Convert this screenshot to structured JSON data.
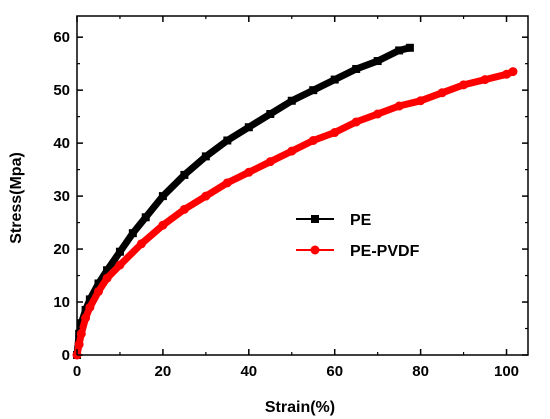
{
  "chart_data": {
    "type": "line",
    "xlabel": "Strain(%)",
    "ylabel": "Stress(Mpa)",
    "xlim": [
      0,
      105
    ],
    "ylim": [
      0,
      64
    ],
    "x_ticks": [
      "0",
      "20",
      "40",
      "60",
      "80",
      "100"
    ],
    "y_ticks": [
      "0",
      "10",
      "20",
      "30",
      "40",
      "50",
      "60"
    ],
    "legend_position": "center-right",
    "grid": false,
    "series": [
      {
        "name": "PE",
        "color": "#000000",
        "marker": "square",
        "x": [
          0,
          0.5,
          1,
          2,
          3,
          5,
          7,
          10,
          13,
          16,
          20,
          25,
          30,
          35,
          40,
          45,
          50,
          55,
          60,
          65,
          70,
          75,
          77.5
        ],
        "y": [
          0,
          4,
          6,
          8.5,
          10.5,
          13.5,
          16,
          19.5,
          23,
          26,
          30,
          34,
          37.5,
          40.5,
          43,
          45.5,
          48,
          50,
          52,
          54,
          55.5,
          57.5,
          58
        ]
      },
      {
        "name": "PE-PVDF",
        "color": "#ff0000",
        "marker": "circle",
        "x": [
          0,
          0.5,
          1,
          2,
          3,
          5,
          7,
          10,
          15,
          20,
          25,
          30,
          35,
          40,
          45,
          50,
          55,
          60,
          65,
          70,
          75,
          80,
          85,
          90,
          95,
          100,
          101.5
        ],
        "y": [
          0,
          2,
          4,
          7,
          9,
          12,
          14.5,
          17,
          21,
          24.5,
          27.5,
          30,
          32.5,
          34.5,
          36.5,
          38.5,
          40.5,
          42,
          44,
          45.5,
          47,
          48,
          49.5,
          51,
          52,
          53,
          53.5
        ]
      }
    ]
  }
}
